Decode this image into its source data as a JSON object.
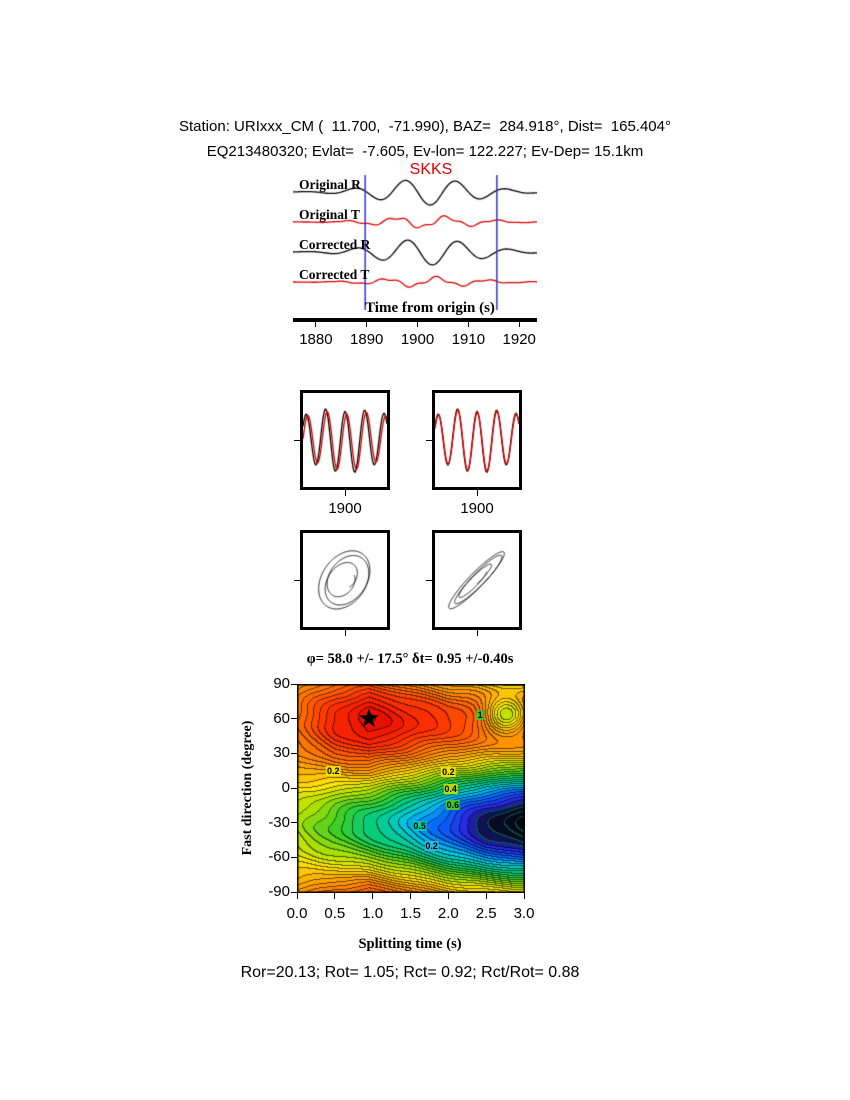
{
  "header": {
    "line1": "Station: URIxxx_CM (  11.700,  -71.990), BAZ=  284.918°, Dist=  165.404°",
    "line2": "EQ213480320; Evlat=  -7.605, Ev-lon= 122.227; Ev-Dep= 15.1km"
  },
  "phase_label": "SKKS",
  "colors": {
    "trace_black": "#000000",
    "trace_red": "#dd0000",
    "window_line": "#3333cc",
    "phase_label_red": "#e00000",
    "axis_black": "#000000",
    "star_black": "#000000"
  },
  "waveforms": {
    "traces": [
      {
        "label": "Original R",
        "color": "black"
      },
      {
        "label": "Original T",
        "color": "red"
      },
      {
        "label": "Corrected R",
        "color": "black"
      },
      {
        "label": "Corrected T",
        "color": "red"
      }
    ],
    "xlabel": "Time from origin (s)",
    "xticks": [
      1880,
      1890,
      1900,
      1910,
      1920
    ],
    "xrange": [
      1875.5,
      1923.5
    ],
    "window": [
      1889.7,
      1915.6
    ],
    "dominant_period": 10
  },
  "window_panels": {
    "tick_labels": [
      "1900",
      "1900"
    ]
  },
  "contour": {
    "title": "φ= 58.0 +/- 17.5°  δt= 0.95 +/-0.40s",
    "xlabel": "Splitting time (s)",
    "ylabel": "Fast direction (degree)",
    "xticks": [
      "0.0",
      "0.5",
      "1.0",
      "1.5",
      "2.0",
      "2.5",
      "3.0"
    ],
    "yticks": [
      "90",
      "60",
      "30",
      "0",
      "-30",
      "-60",
      "-90"
    ],
    "xrange": [
      0,
      3
    ],
    "yrange": [
      -90,
      90
    ],
    "best_fit": {
      "phi_deg": 58.0,
      "phi_err_deg": 17.5,
      "dt_s": 0.95,
      "dt_err_s": 0.4
    },
    "star": {
      "dt": 0.95,
      "phi": 58,
      "glyph": "★"
    },
    "labels": [
      {
        "text": "0.2",
        "dt": 0.48,
        "phi": 15,
        "bg": "#f0e000"
      },
      {
        "text": "0.2",
        "dt": 2.0,
        "phi": 14,
        "bg": "#f0e000"
      },
      {
        "text": "0.4",
        "dt": 2.03,
        "phi": -1,
        "bg": "#b8dc00"
      },
      {
        "text": "0.6",
        "dt": 2.06,
        "phi": -15,
        "bg": "#3ec832"
      },
      {
        "text": "0.5",
        "dt": 1.62,
        "phi": -33,
        "bg": "#00c8aa"
      },
      {
        "text": "0.2",
        "dt": 1.78,
        "phi": -50,
        "bg": "#30b4e6"
      },
      {
        "text": "1",
        "dt": 2.42,
        "phi": 63,
        "bg": "#3ec832"
      }
    ]
  },
  "footer": {
    "text": "Ror=20.13; Rot= 1.05; Rct= 0.92; Rct/Rot= 0.88"
  },
  "chart_data": [
    {
      "type": "line",
      "title": "SKKS phase waveforms",
      "series": [
        {
          "name": "Original R"
        },
        {
          "name": "Original T"
        },
        {
          "name": "Corrected R"
        },
        {
          "name": "Corrected T"
        }
      ],
      "xlabel": "Time from origin (s)",
      "x_ticks": [
        1880,
        1890,
        1900,
        1910,
        1920
      ],
      "x_range": [
        1875.5,
        1923.5
      ],
      "analysis_window_s": [
        1889.7,
        1915.6
      ],
      "dominant_period_s": 10
    },
    {
      "type": "line",
      "title": "windowed component overlay panels (before / after correction)",
      "x_tick_labels": [
        "1900",
        "1900"
      ]
    },
    {
      "type": "heatmap",
      "title": "φ= 58.0 +/- 17.5°  δt= 0.95 +/-0.40s",
      "xlabel": "Splitting time (s)",
      "ylabel": "Fast direction (degree)",
      "x_range": [
        0,
        3
      ],
      "y_range": [
        -90,
        90
      ],
      "x_ticks": [
        0.0,
        0.5,
        1.0,
        1.5,
        2.0,
        2.5,
        3.0
      ],
      "y_ticks": [
        90,
        60,
        30,
        0,
        -30,
        -60,
        -90
      ],
      "best_fit": {
        "fast_direction_deg": 58.0,
        "fast_direction_err_deg": 17.5,
        "splitting_time_s": 0.95,
        "splitting_time_err_s": 0.4
      },
      "star_marker": {
        "x": 0.95,
        "y": 58
      },
      "labeled_contour_levels": [
        0.2,
        0.4,
        0.5,
        0.6,
        1
      ]
    },
    {
      "type": "table",
      "title": "quality metrics",
      "values": {
        "Ror": 20.13,
        "Rot": 1.05,
        "Rct": 0.92,
        "Rct_over_Rot": 0.88
      }
    }
  ]
}
